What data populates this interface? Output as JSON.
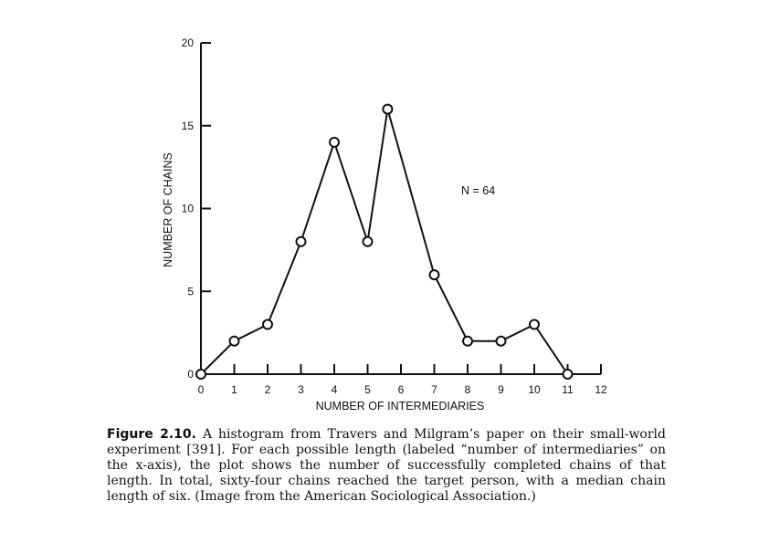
{
  "chart_data": {
    "type": "line",
    "xlabel": "NUMBER OF INTERMEDIARIES",
    "ylabel": "NUMBER OF CHAINS",
    "xlim": [
      0,
      12
    ],
    "ylim": [
      0,
      20
    ],
    "x_ticks": [
      "0",
      "1",
      "2",
      "3",
      "4",
      "5",
      "6",
      "7",
      "8",
      "9",
      "10",
      "11",
      "12"
    ],
    "y_ticks": [
      "0",
      "5",
      "10",
      "15",
      "20"
    ],
    "annotation": "N = 64",
    "x": [
      0,
      1,
      2,
      3,
      4,
      5,
      5.6,
      7,
      8,
      9,
      10,
      11
    ],
    "values": [
      0,
      2,
      3,
      8,
      14,
      8,
      16,
      6,
      2,
      2,
      3,
      0
    ],
    "grid": false
  },
  "caption": {
    "label": "Figure 2.10.",
    "text": "A histogram from Travers and Milgram’s paper on their small-world experiment [391]. For each possible length (labeled “number of intermediaries” on the x-axis), the plot shows the number of successfully completed chains of that length. In total, sixty-four chains reached the target person, with a median chain length of six. (Image from the American Sociological Association.)"
  }
}
